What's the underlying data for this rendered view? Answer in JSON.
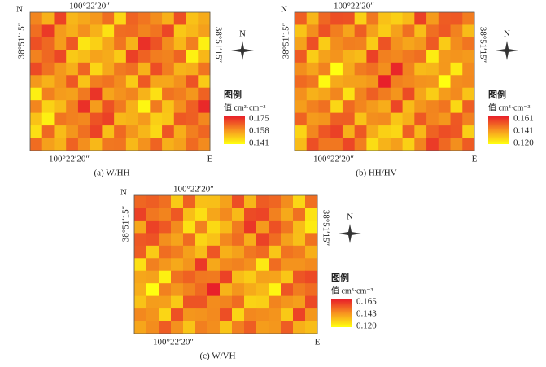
{
  "panels": [
    {
      "north": "N",
      "lon_top": "100°22′20″",
      "lat_left": "38°51′15″",
      "lat_right": "38°51′15″",
      "lon_bottom": "100°22′20″",
      "east": "E",
      "compass_n": "N",
      "legend_title": "图例",
      "legend_unit": "值 cm³·cm⁻³",
      "legend_values": [
        "0.175",
        "0.158",
        "0.141"
      ],
      "caption": "(a) W/HH"
    },
    {
      "north": "N",
      "lon_top": "100°22′20″",
      "lat_left": "38°51′15″",
      "lat_right": "38°51′15″",
      "lon_bottom": "100°22′20″",
      "east": "E",
      "compass_n": "N",
      "legend_title": "图例",
      "legend_unit": "值 cm³·cm⁻³",
      "legend_values": [
        "0.161",
        "0.141",
        "0.120"
      ],
      "caption": "(b) HH/HV"
    },
    {
      "north": "N",
      "lon_top": "100°22′20″",
      "lat_left": "38°51′15″",
      "lat_right": "38°51′15″",
      "lon_bottom": "100°22′20″",
      "east": "E",
      "compass_n": "N",
      "legend_title": "图例",
      "legend_unit": "值 cm³·cm⁻³",
      "legend_values": [
        "0.165",
        "0.143",
        "0.120"
      ],
      "caption": "(c) W/VH"
    }
  ]
}
